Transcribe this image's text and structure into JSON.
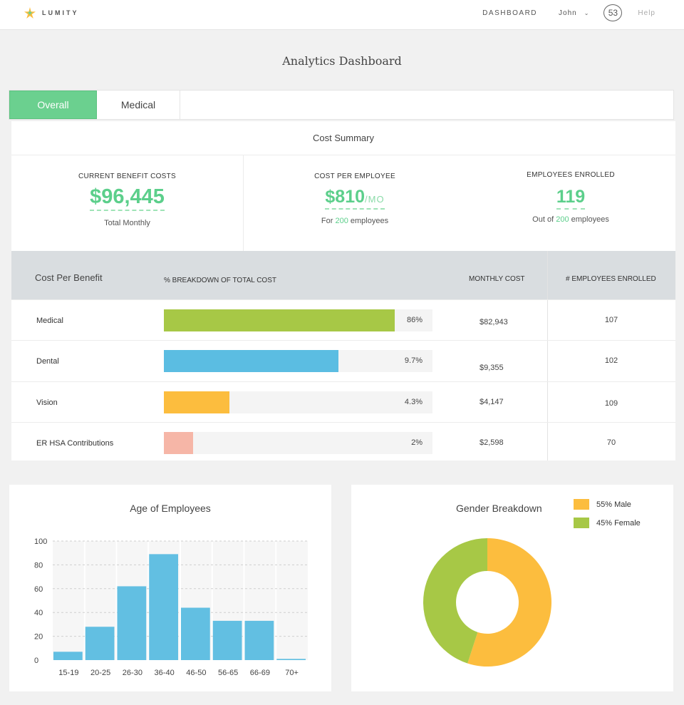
{
  "nav": {
    "brand": "LUMITY",
    "dashboard": "DASHBOARD",
    "user": "John",
    "badge": "53",
    "help": "Help"
  },
  "page": {
    "title": "Analytics Dashboard"
  },
  "tabs": [
    {
      "label": "Overall",
      "active": true
    },
    {
      "label": "Medical",
      "active": false
    }
  ],
  "summary": {
    "title": "Cost Summary",
    "metrics": [
      {
        "label": "CURRENT BENEFIT COSTS",
        "value": "$96,445",
        "sub": "Total Monthly"
      },
      {
        "label": "COST PER EMPLOYEE",
        "value": "$810",
        "unit": "/MO",
        "sub_prefix": "For ",
        "sub_highlight": "200",
        "sub_suffix": " employees"
      },
      {
        "label": "EMPLOYEES ENROLLED",
        "value": "119",
        "sub_prefix": "Out of ",
        "sub_highlight": "200",
        "sub_suffix": " employees"
      }
    ]
  },
  "cost_per_benefit": {
    "header": {
      "title": "Cost Per Benefit",
      "breakdown": "% BREAKDOWN OF TOTAL COST",
      "monthly": "MONTHLY COST",
      "enrolled": "# EMPLOYEES ENROLLED"
    },
    "rows": [
      {
        "name": "Medical",
        "pct": "86%",
        "share": 0.86,
        "color": "#a7c846",
        "cost": "$82,943",
        "enrolled": "107"
      },
      {
        "name": "Dental",
        "pct": "9.7%",
        "share": 0.65,
        "color": "#5bbde2",
        "cost": "$9,355",
        "enrolled": "102"
      },
      {
        "name": "Vision",
        "pct": "4.3%",
        "share": 0.245,
        "color": "#fcbd3e",
        "cost": "$4,147",
        "enrolled": "109"
      },
      {
        "name": "ER HSA Contributions",
        "pct": "2%",
        "share": 0.11,
        "color": "#f6b6a7",
        "cost": "$2,598",
        "enrolled": "70"
      }
    ]
  },
  "age_chart": {
    "title": "Age of Employees",
    "chart_data": {
      "type": "bar",
      "categories": [
        "15-19",
        "20-25",
        "26-30",
        "36-40",
        "46-50",
        "56-65",
        "66-69",
        "70+"
      ],
      "values": [
        7,
        28,
        62,
        89,
        44,
        33,
        33,
        1
      ],
      "ylim": [
        0,
        100
      ],
      "yticks": [
        0,
        20,
        40,
        60,
        80,
        100
      ],
      "color": "#62bfe2",
      "grid": true
    }
  },
  "gender_chart": {
    "title": "Gender Breakdown",
    "chart_data": {
      "type": "pie",
      "labels": [
        "55% Male",
        "45% Female"
      ],
      "values": [
        55,
        45
      ],
      "colors": [
        "#fcbd3e",
        "#a7c846"
      ],
      "donut": true,
      "legend": "top-right"
    }
  }
}
